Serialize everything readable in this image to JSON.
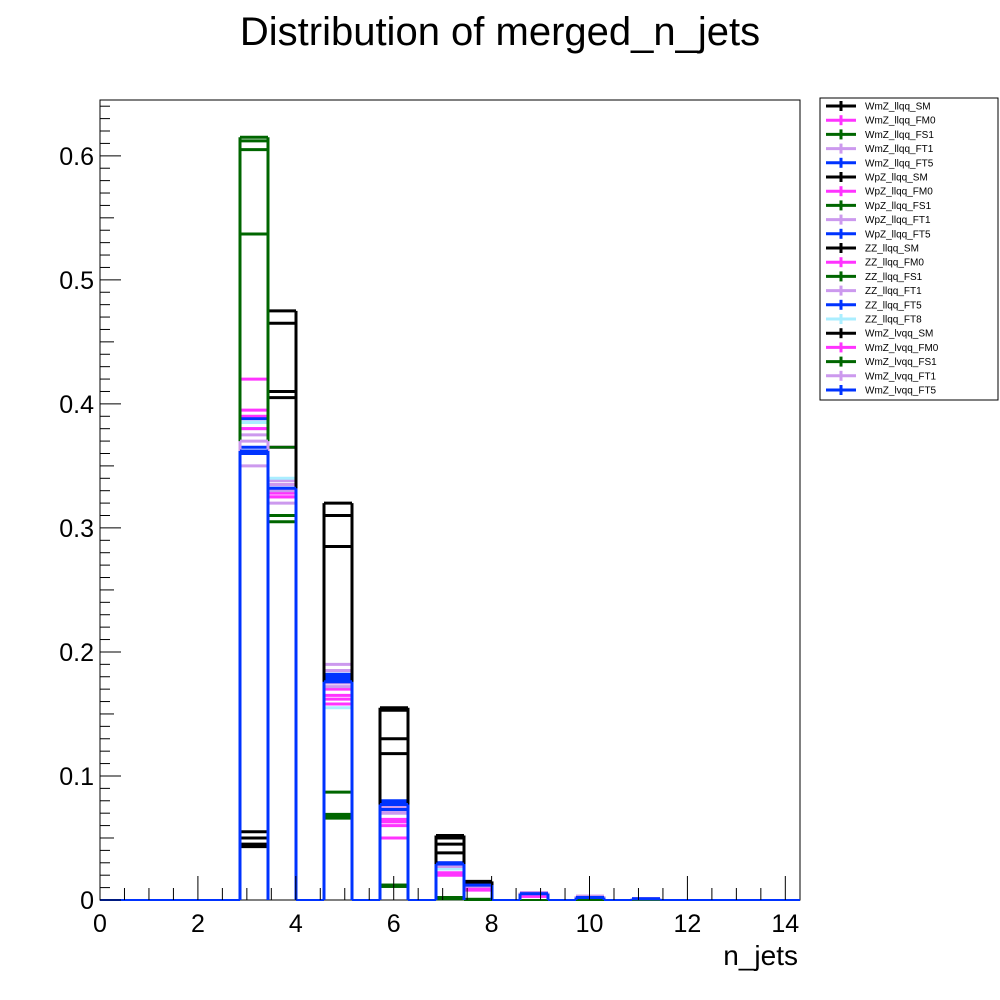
{
  "chart_data": {
    "type": "histogram",
    "title": "Distribution of merged_n_jets",
    "xlabel": "n_jets",
    "ylabel": "",
    "xlim": [
      0,
      14.3
    ],
    "ylim": [
      0,
      0.645
    ],
    "x_ticks": [
      "0",
      "2",
      "4",
      "6",
      "8",
      "10",
      "12",
      "14"
    ],
    "y_ticks": [
      "0",
      "0.1",
      "0.2",
      "0.3",
      "0.4",
      "0.5",
      "0.6"
    ],
    "grid": false,
    "legend_position": "top-right",
    "bin_edges": [
      0,
      0.572,
      1.144,
      1.716,
      2.288,
      2.86,
      3.432,
      4.004,
      4.576,
      5.148,
      5.72,
      6.292,
      6.864,
      7.436,
      8.008,
      8.58,
      9.152,
      9.724,
      10.296,
      10.868,
      11.44,
      12.012,
      12.584,
      13.156,
      13.728,
      14.3
    ],
    "series": [
      {
        "name": "WmZ_llqq_SM",
        "color": "#000000",
        "values": [
          0,
          0,
          0,
          0,
          0,
          0.055,
          0.465,
          0,
          0.31,
          0,
          0.155,
          0,
          0.052,
          0.015,
          0,
          0.005,
          0,
          0.001,
          0,
          0.0005,
          0,
          0,
          0,
          0,
          0
        ]
      },
      {
        "name": "WmZ_llqq_FM0",
        "color": "#ff33ff",
        "values": [
          0,
          0,
          0,
          0,
          0,
          0.39,
          0.325,
          0,
          0.17,
          0,
          0.06,
          0,
          0.025,
          0.01,
          0,
          0.004,
          0,
          0.002,
          0,
          0.001,
          0,
          0,
          0,
          0,
          0
        ]
      },
      {
        "name": "WmZ_llqq_FS1",
        "color": "#006600",
        "values": [
          0,
          0,
          0,
          0,
          0,
          0.615,
          0.305,
          0,
          0.067,
          0,
          0.011,
          0,
          0.002,
          0.0005,
          0,
          0,
          0,
          0,
          0,
          0,
          0,
          0,
          0,
          0,
          0
        ]
      },
      {
        "name": "WmZ_llqq_FT1",
        "color": "#cc99ee",
        "values": [
          0,
          0,
          0,
          0,
          0,
          0.35,
          0.32,
          0,
          0.19,
          0,
          0.075,
          0,
          0.03,
          0.013,
          0,
          0.006,
          0,
          0.003,
          0,
          0.001,
          0,
          0,
          0,
          0,
          0
        ]
      },
      {
        "name": "WmZ_llqq_FT5",
        "color": "#0033ff",
        "values": [
          0,
          0,
          0,
          0,
          0,
          0.36,
          0.335,
          0,
          0.18,
          0,
          0.08,
          0,
          0.03,
          0.012,
          0,
          0.005,
          0,
          0.002,
          0,
          0.001,
          0,
          0,
          0,
          0,
          0
        ]
      },
      {
        "name": "WpZ_llqq_SM",
        "color": "#000000",
        "values": [
          0,
          0,
          0,
          0,
          0,
          0.05,
          0.475,
          0,
          0.32,
          0,
          0.153,
          0,
          0.05,
          0.014,
          0,
          0.005,
          0,
          0.001,
          0,
          0.0005,
          0,
          0,
          0,
          0,
          0
        ]
      },
      {
        "name": "WpZ_llqq_FM0",
        "color": "#ff33ff",
        "values": [
          0,
          0,
          0,
          0,
          0,
          0.42,
          0.365,
          0,
          0.165,
          0,
          0.065,
          0,
          0.022,
          0.012,
          0,
          0.003,
          0,
          0.002,
          0,
          0.001,
          0,
          0,
          0,
          0,
          0
        ]
      },
      {
        "name": "WpZ_llqq_FS1",
        "color": "#006600",
        "values": [
          0,
          0,
          0,
          0,
          0,
          0.605,
          0.31,
          0,
          0.069,
          0,
          0.012,
          0,
          0.002,
          0.0005,
          0,
          0,
          0,
          0,
          0,
          0,
          0,
          0,
          0,
          0,
          0
        ]
      },
      {
        "name": "WpZ_llqq_FT1",
        "color": "#cc99ee",
        "values": [
          0,
          0,
          0,
          0,
          0,
          0.375,
          0.335,
          0,
          0.175,
          0,
          0.072,
          0,
          0.028,
          0.012,
          0,
          0.005,
          0,
          0.002,
          0,
          0.001,
          0,
          0,
          0,
          0,
          0
        ]
      },
      {
        "name": "WpZ_llqq_FT5",
        "color": "#0033ff",
        "values": [
          0,
          0,
          0,
          0,
          0,
          0.365,
          0.33,
          0,
          0.178,
          0,
          0.078,
          0,
          0.028,
          0.011,
          0,
          0.005,
          0,
          0.002,
          0,
          0.001,
          0,
          0,
          0,
          0,
          0
        ]
      },
      {
        "name": "ZZ_llqq_SM",
        "color": "#000000",
        "values": [
          0,
          0,
          0,
          0,
          0,
          0.045,
          0.41,
          0,
          0.285,
          0,
          0.13,
          0,
          0.045,
          0.012,
          0,
          0.004,
          0,
          0.001,
          0,
          0,
          0,
          0,
          0,
          0,
          0
        ]
      },
      {
        "name": "ZZ_llqq_FM0",
        "color": "#ff33ff",
        "values": [
          0,
          0,
          0,
          0,
          0,
          0.395,
          0.328,
          0,
          0.158,
          0,
          0.05,
          0,
          0.02,
          0.008,
          0,
          0.003,
          0,
          0.001,
          0,
          0,
          0,
          0,
          0,
          0,
          0
        ]
      },
      {
        "name": "ZZ_llqq_FS1",
        "color": "#006600",
        "values": [
          0,
          0,
          0,
          0,
          0,
          0.537,
          0.365,
          0,
          0.087,
          0,
          0.012,
          0,
          0.001,
          0,
          0,
          0,
          0,
          0,
          0,
          0,
          0,
          0,
          0,
          0,
          0
        ]
      },
      {
        "name": "ZZ_llqq_FT1",
        "color": "#cc99ee",
        "values": [
          0,
          0,
          0,
          0,
          0,
          0.38,
          0.338,
          0,
          0.185,
          0,
          0.07,
          0,
          0.025,
          0.01,
          0,
          0.004,
          0,
          0.003,
          0,
          0.001,
          0,
          0,
          0,
          0,
          0
        ]
      },
      {
        "name": "ZZ_llqq_FT5",
        "color": "#0033ff",
        "values": [
          0,
          0,
          0,
          0,
          0,
          0.388,
          0.332,
          0,
          0.182,
          0,
          0.073,
          0,
          0.027,
          0.011,
          0,
          0.004,
          0,
          0.002,
          0,
          0.001,
          0,
          0,
          0,
          0,
          0
        ]
      },
      {
        "name": "ZZ_llqq_FT8",
        "color": "#aaeeff",
        "values": [
          0,
          0,
          0,
          0,
          0,
          0.385,
          0.34,
          0,
          0.155,
          0,
          0.07,
          0,
          0.025,
          0.01,
          0,
          0.004,
          0,
          0.002,
          0,
          0.001,
          0,
          0,
          0,
          0,
          0
        ]
      },
      {
        "name": "WmZ_lvqq_SM",
        "color": "#000000",
        "values": [
          0,
          0,
          0,
          0,
          0,
          0.043,
          0.405,
          0,
          0.31,
          0,
          0.118,
          0,
          0.038,
          0.01,
          0,
          0.004,
          0,
          0.001,
          0,
          0,
          0,
          0,
          0,
          0,
          0
        ]
      },
      {
        "name": "WmZ_lvqq_FM0",
        "color": "#ff33ff",
        "values": [
          0,
          0,
          0,
          0,
          0,
          0.38,
          0.325,
          0,
          0.162,
          0,
          0.063,
          0,
          0.021,
          0.009,
          0,
          0.003,
          0,
          0.002,
          0,
          0.001,
          0,
          0,
          0,
          0,
          0
        ]
      },
      {
        "name": "WmZ_lvqq_FS1",
        "color": "#006600",
        "values": [
          0,
          0,
          0,
          0,
          0,
          0.612,
          0.31,
          0,
          0.066,
          0,
          0.011,
          0,
          0.0015,
          0,
          0,
          0,
          0,
          0,
          0,
          0,
          0,
          0,
          0,
          0,
          0
        ]
      },
      {
        "name": "WmZ_lvqq_FT1",
        "color": "#cc99ee",
        "values": [
          0,
          0,
          0,
          0,
          0,
          0.37,
          0.33,
          0,
          0.172,
          0,
          0.07,
          0,
          0.027,
          0.011,
          0,
          0.005,
          0,
          0.003,
          0,
          0.001,
          0,
          0,
          0,
          0,
          0
        ]
      },
      {
        "name": "WmZ_lvqq_FT5",
        "color": "#0033ff",
        "values": [
          0,
          0,
          0,
          0,
          0,
          0.362,
          0.332,
          0,
          0.176,
          0,
          0.077,
          0,
          0.029,
          0.012,
          0,
          0.005,
          0,
          0.002,
          0,
          0.001,
          0,
          0,
          0,
          0,
          0
        ]
      }
    ]
  }
}
